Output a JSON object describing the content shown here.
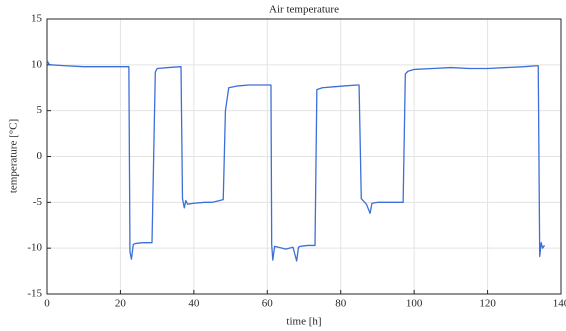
{
  "chart_data": {
    "type": "line",
    "title": "Air temperature",
    "x_label": "time [h]",
    "y_label": "temperature [°C]",
    "x": [
      0,
      0.5,
      1,
      5,
      10,
      15,
      20,
      22.3,
      22.6,
      23,
      23.5,
      24,
      26,
      28,
      28.6,
      29.5,
      30,
      33,
      36.5,
      36.9,
      37.4,
      37.8,
      38.3,
      40,
      43,
      45,
      48,
      48.6,
      49.5,
      52,
      55,
      58,
      61,
      61.2,
      61.5,
      62,
      64,
      65,
      67,
      68,
      68.5,
      69,
      71,
      73,
      73.5,
      75,
      78,
      81,
      84.5,
      85,
      85.6,
      87,
      88,
      88.5,
      90,
      92,
      95,
      97,
      97.6,
      98.3,
      100,
      105,
      110,
      115,
      120,
      125,
      130,
      133.3,
      133.8,
      134.2,
      134.6,
      135,
      135.5
    ],
    "values": [
      10.5,
      10.1,
      10.0,
      9.9,
      9.8,
      9.8,
      9.8,
      9.8,
      -10.4,
      -11.2,
      -9.6,
      -9.5,
      -9.4,
      -9.4,
      -9.4,
      9.2,
      9.6,
      9.7,
      9.8,
      -4.6,
      -5.6,
      -4.8,
      -5.2,
      -5.1,
      -5.0,
      -5.0,
      -4.7,
      5.0,
      7.5,
      7.7,
      7.8,
      7.8,
      7.8,
      -9.6,
      -11.3,
      -9.8,
      -10.0,
      -10.1,
      -9.9,
      -11.4,
      -9.9,
      -9.8,
      -9.7,
      -9.7,
      7.3,
      7.5,
      7.6,
      7.7,
      7.8,
      7.8,
      -4.6,
      -5.2,
      -6.2,
      -5.1,
      -5.0,
      -5.0,
      -5.0,
      -5.0,
      9.0,
      9.3,
      9.5,
      9.6,
      9.7,
      9.6,
      9.6,
      9.7,
      9.8,
      9.9,
      9.9,
      -10.9,
      -9.4,
      -10.0,
      -9.7
    ],
    "color": "#3c6fd8",
    "xlim": [
      0,
      140
    ],
    "xticks": [
      0,
      20,
      40,
      60,
      80,
      100,
      120,
      140
    ],
    "ylim": [
      -15,
      15
    ],
    "yticks": [
      -15,
      -10,
      -5,
      0,
      5,
      10,
      15
    ],
    "grid": true
  }
}
